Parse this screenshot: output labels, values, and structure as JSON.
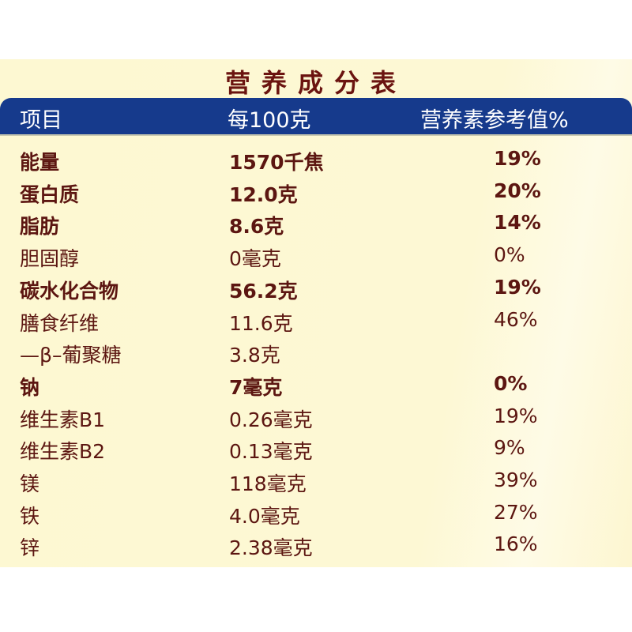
{
  "title": "营养成分表",
  "header": {
    "item": "项目",
    "per100g": "每100克",
    "nrv": "营养素参考值%"
  },
  "colors": {
    "header_band": "#163a8c",
    "text": "#5c1611",
    "background": "#fdf8d2"
  },
  "rows": [
    {
      "name": "能量",
      "amount": "1570千焦",
      "nrv": "19%",
      "bold": true
    },
    {
      "name": "蛋白质",
      "amount": "12.0克",
      "nrv": "20%",
      "bold": true
    },
    {
      "name": "脂肪",
      "amount": "8.6克",
      "nrv": "14%",
      "bold": true
    },
    {
      "name": "胆固醇",
      "amount": "0毫克",
      "nrv": "0%",
      "bold": false
    },
    {
      "name": "碳水化合物",
      "amount": "56.2克",
      "nrv": "19%",
      "bold": true
    },
    {
      "name": "膳食纤维",
      "amount": "11.6克",
      "nrv": "46%",
      "bold": false
    },
    {
      "name": "—β–葡聚糖",
      "amount": "3.8克",
      "nrv": "",
      "bold": false
    },
    {
      "name": "钠",
      "amount": "7毫克",
      "nrv": "0%",
      "bold": true
    },
    {
      "name": "维生素B1",
      "amount": "0.26毫克",
      "nrv": "19%",
      "bold": false
    },
    {
      "name": "维生素B2",
      "amount": "0.13毫克",
      "nrv": "9%",
      "bold": false
    },
    {
      "name": "镁",
      "amount": "118毫克",
      "nrv": "39%",
      "bold": false
    },
    {
      "name": "铁",
      "amount": "4.0毫克",
      "nrv": "27%",
      "bold": false
    },
    {
      "name": "锌",
      "amount": "2.38毫克",
      "nrv": "16%",
      "bold": false
    }
  ]
}
